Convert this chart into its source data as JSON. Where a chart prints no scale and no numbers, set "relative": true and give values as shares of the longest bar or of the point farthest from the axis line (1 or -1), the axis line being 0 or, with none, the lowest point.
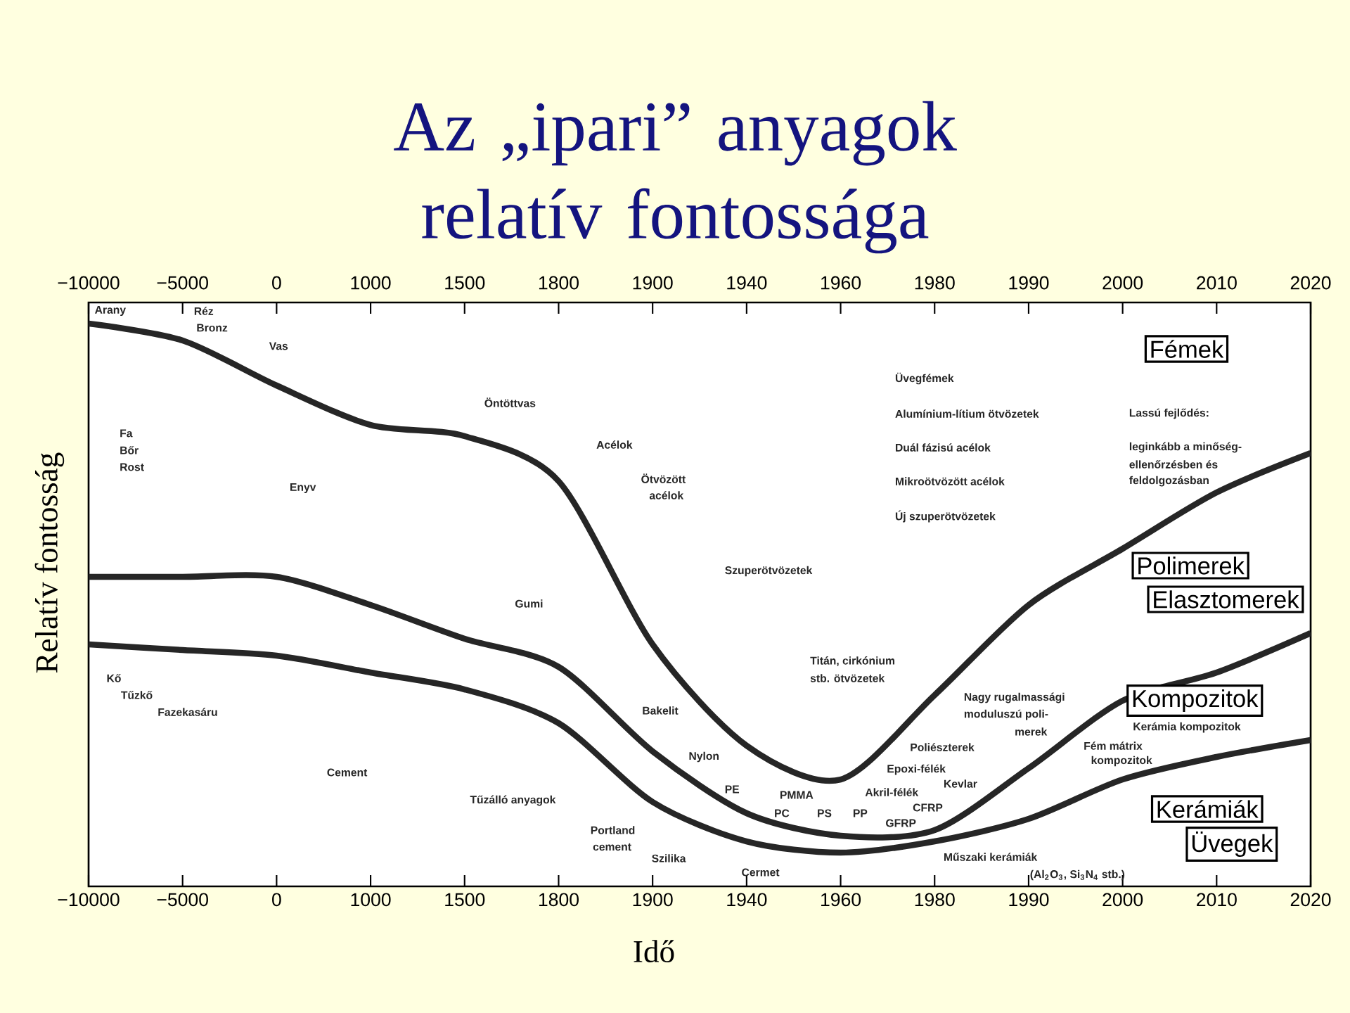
{
  "chart_data": {
    "type": "line",
    "title": "Az „ipari” anyagok relatív fontossága",
    "xlabel": "Idő",
    "ylabel": "Relatív fontosság",
    "relative": true,
    "categories": [
      "−10000",
      "−5000",
      "0",
      "1000",
      "1500",
      "1800",
      "1900",
      "1940",
      "1960",
      "1980",
      "1990",
      "2000",
      "2010",
      "2020"
    ],
    "series": [
      {
        "color": "#262626",
        "values": [
          1.0,
          0.97,
          0.89,
          0.82,
          0.8,
          0.72,
          0.43,
          0.25,
          0.19,
          0.34,
          0.5,
          0.6,
          0.7,
          0.77
        ]
      },
      {
        "color": "#262626",
        "values": [
          0.55,
          0.55,
          0.55,
          0.5,
          0.44,
          0.39,
          0.24,
          0.13,
          0.09,
          0.1,
          0.21,
          0.33,
          0.38,
          0.45
        ]
      },
      {
        "color": "#262626",
        "values": [
          0.43,
          0.42,
          0.41,
          0.38,
          0.35,
          0.29,
          0.15,
          0.08,
          0.06,
          0.08,
          0.12,
          0.19,
          0.23,
          0.26
        ]
      }
    ],
    "annotations": [
      "Arany",
      "Réz",
      "Bronz",
      "Vas",
      "Fa",
      "Bőr",
      "Rost",
      "Enyv",
      "Öntöttvas",
      "Acélok",
      "Ötvözött",
      "acélok",
      "Gumi",
      "Szuperötvözetek",
      "Üvegfémek",
      "Alumínium-lítium ötvözetek",
      "Duál fázisú acélok",
      "Mikroötvözött acélok",
      "Új szuperötvözetek",
      "Lassú fejlődés:",
      "leginkább a minőség-",
      "ellenőrzésben és",
      "feldolgozásban",
      "Titán, cirkónium",
      "stb. ötvözetek",
      "Nagy rugalmassági",
      "moduluszú poli-",
      "merek",
      "Poliészterek",
      "Epoxi-félék",
      "Akril-félék",
      "Kevlar",
      "CFRP",
      "GFRP",
      "Műszaki kerámiák",
      "(Al$_{2}$O$_{3}$, Si$_{3}$N$_{4}$ stb.)",
      "Kerámia kompozitok",
      "Fém mátrix",
      "kompozitok",
      "Kő",
      "Tűzkő",
      "Fazekasáru",
      "Cement",
      "Tűzálló anyagok",
      "Portland",
      "cement",
      "Szilika",
      "Bakelit",
      "Nylon",
      "PE",
      "PMMA",
      "PC",
      "PS",
      "PP",
      "Cermet",
      "Fémek",
      "Polimerek",
      "Elasztomerek",
      "Kompozitok",
      "Kerámiák",
      "Üvegek"
    ]
  }
}
